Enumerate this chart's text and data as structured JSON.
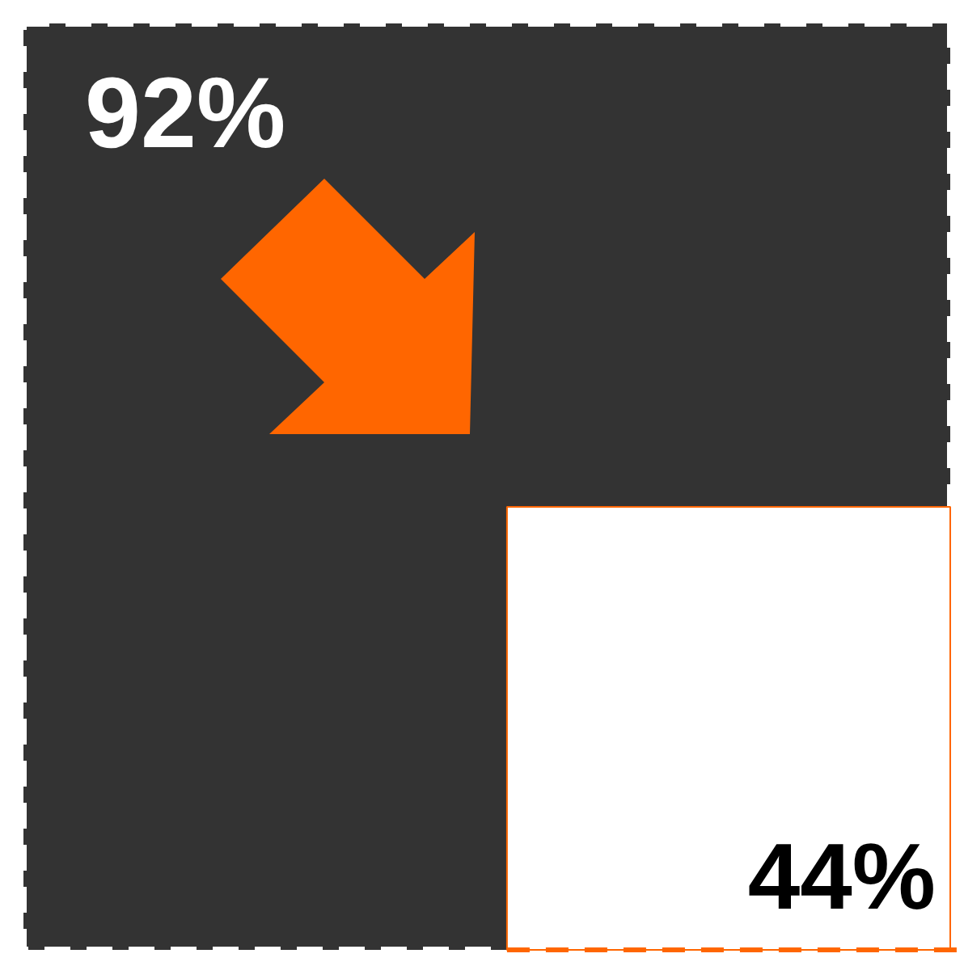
{
  "chart_data": {
    "type": "other",
    "categories": [
      null,
      null
    ],
    "values": [
      92,
      44
    ],
    "value_labels": [
      "92%",
      "44%"
    ],
    "colors": [
      "#333333",
      "#ffffff"
    ]
  }
}
